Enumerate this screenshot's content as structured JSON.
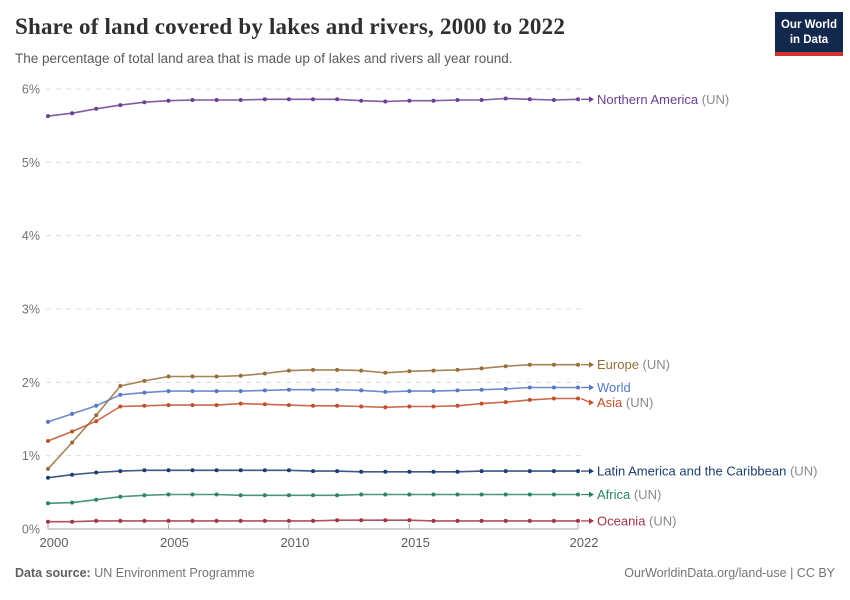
{
  "header": {
    "title": "Share of land covered by lakes and rivers, 2000 to 2022",
    "subtitle": "The percentage of total land area that is made up of lakes and rivers all year round.",
    "logo": {
      "line1": "Our World",
      "line2": "in Data",
      "bg_color": "#12294d",
      "bar_color": "#d0342c"
    }
  },
  "footer": {
    "source_label": "Data source:",
    "source_value": " UN Environment Programme",
    "link": "OurWorldinData.org/land-use",
    "license": " | CC BY"
  },
  "chart_data": {
    "type": "line",
    "title": "Share of land covered by lakes and rivers, 2000 to 2022",
    "unit": "%",
    "x": [
      2000,
      2001,
      2002,
      2003,
      2004,
      2005,
      2006,
      2007,
      2008,
      2009,
      2010,
      2011,
      2012,
      2013,
      2014,
      2015,
      2016,
      2017,
      2018,
      2019,
      2020,
      2021,
      2022
    ],
    "x_ticks": [
      2000,
      2005,
      2010,
      2015,
      2022
    ],
    "y_ticks_percent": [
      0,
      1,
      2,
      3,
      4,
      5,
      6
    ],
    "ylim": [
      0,
      6.2
    ],
    "grid": "horizontal-dashed",
    "legend_position": "end-of-line-labels",
    "suffix_color": "#8a8a8a",
    "series": [
      {
        "name": "Northern America",
        "suffix": " (UN)",
        "color": "#6d3e91",
        "values": [
          5.63,
          5.67,
          5.73,
          5.78,
          5.82,
          5.84,
          5.85,
          5.85,
          5.85,
          5.86,
          5.86,
          5.86,
          5.86,
          5.84,
          5.83,
          5.84,
          5.84,
          5.85,
          5.85,
          5.87,
          5.86,
          5.85,
          5.86
        ]
      },
      {
        "name": "Europe",
        "suffix": " (UN)",
        "color": "#996d39",
        "values": [
          0.82,
          1.18,
          1.55,
          1.95,
          2.02,
          2.08,
          2.08,
          2.08,
          2.09,
          2.12,
          2.16,
          2.17,
          2.17,
          2.16,
          2.13,
          2.15,
          2.16,
          2.17,
          2.19,
          2.22,
          2.24,
          2.24,
          2.24
        ]
      },
      {
        "name": "World",
        "suffix": "",
        "color": "#5578c1",
        "values": [
          1.46,
          1.57,
          1.68,
          1.83,
          1.86,
          1.88,
          1.88,
          1.88,
          1.88,
          1.89,
          1.9,
          1.9,
          1.9,
          1.89,
          1.87,
          1.88,
          1.88,
          1.89,
          1.9,
          1.91,
          1.93,
          1.93,
          1.93
        ]
      },
      {
        "name": "Asia",
        "suffix": " (UN)",
        "color": "#c0502a",
        "values": [
          1.2,
          1.33,
          1.47,
          1.67,
          1.68,
          1.69,
          1.69,
          1.69,
          1.71,
          1.7,
          1.69,
          1.68,
          1.68,
          1.67,
          1.66,
          1.67,
          1.67,
          1.68,
          1.71,
          1.73,
          1.76,
          1.78,
          1.78
        ]
      },
      {
        "name": "Latin America and the Caribbean",
        "suffix": " (UN)",
        "color": "#1d3d70",
        "values": [
          0.7,
          0.74,
          0.77,
          0.79,
          0.8,
          0.8,
          0.8,
          0.8,
          0.8,
          0.8,
          0.8,
          0.79,
          0.79,
          0.78,
          0.78,
          0.78,
          0.78,
          0.78,
          0.79,
          0.79,
          0.79,
          0.79,
          0.79
        ]
      },
      {
        "name": "Africa",
        "suffix": " (UN)",
        "color": "#2c8465",
        "values": [
          0.35,
          0.36,
          0.4,
          0.44,
          0.46,
          0.47,
          0.47,
          0.47,
          0.46,
          0.46,
          0.46,
          0.46,
          0.46,
          0.47,
          0.47,
          0.47,
          0.47,
          0.47,
          0.47,
          0.47,
          0.47,
          0.47,
          0.47
        ]
      },
      {
        "name": "Oceania",
        "suffix": " (UN)",
        "color": "#a03445",
        "values": [
          0.1,
          0.1,
          0.11,
          0.11,
          0.11,
          0.11,
          0.11,
          0.11,
          0.11,
          0.11,
          0.11,
          0.11,
          0.12,
          0.12,
          0.12,
          0.12,
          0.11,
          0.11,
          0.11,
          0.11,
          0.11,
          0.11,
          0.11
        ]
      }
    ]
  }
}
